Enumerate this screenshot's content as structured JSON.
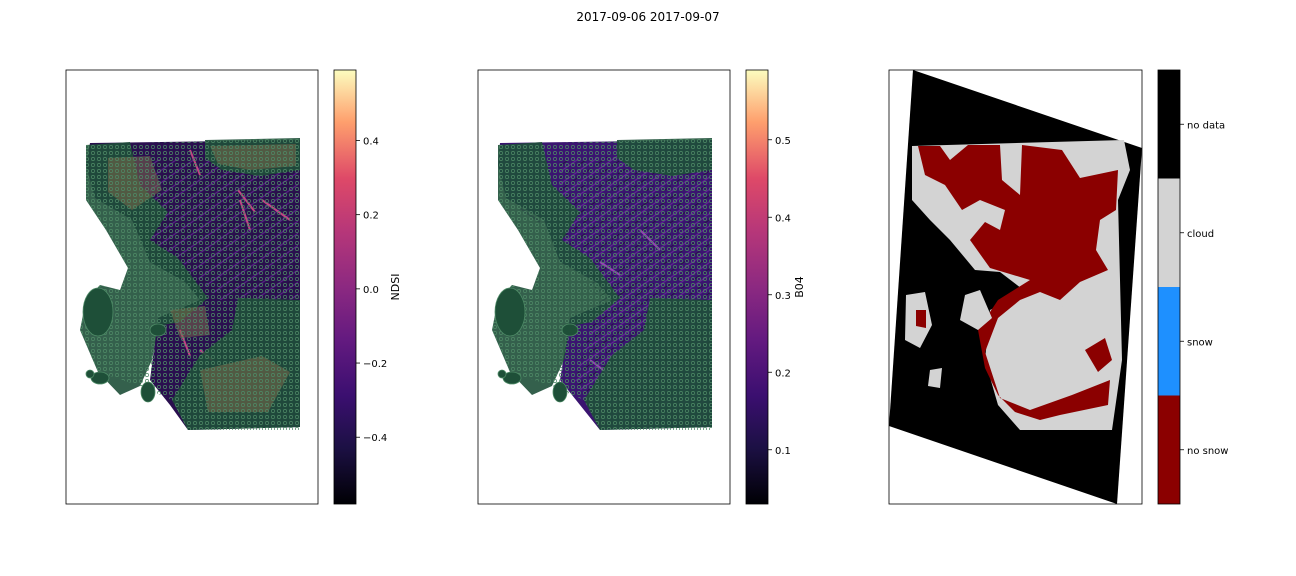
{
  "figure": {
    "title": "2017-09-06 2017-09-07"
  },
  "chart_data": [
    {
      "type": "heatmap",
      "title": "",
      "colorbar": {
        "label": "NDSI",
        "colormap": "magma",
        "range": [
          -0.58,
          0.59
        ],
        "ticks": [
          -0.4,
          -0.2,
          0.0,
          0.2,
          0.4
        ],
        "tick_labels": [
          "−0.4",
          "−0.2",
          "0.0",
          "0.2",
          "0.4"
        ]
      },
      "overlay_color": "#1e4f38",
      "xticks": [],
      "yticks": []
    },
    {
      "type": "heatmap",
      "title": "",
      "colorbar": {
        "label": "B04",
        "colormap": "magma",
        "range": [
          0.03,
          0.59
        ],
        "ticks": [
          0.1,
          0.2,
          0.3,
          0.4,
          0.5
        ],
        "tick_labels": [
          "0.1",
          "0.2",
          "0.3",
          "0.4",
          "0.5"
        ]
      },
      "overlay_color": "#1e4f38",
      "xticks": [],
      "yticks": []
    },
    {
      "type": "heatmap",
      "title": "",
      "colorbar": {
        "label": "",
        "categories": [
          {
            "name": "no snow",
            "color": "#8b0000"
          },
          {
            "name": "snow",
            "color": "#1e90ff"
          },
          {
            "name": "cloud",
            "color": "#d3d3d3"
          },
          {
            "name": "no data",
            "color": "#000000"
          }
        ]
      },
      "xticks": [],
      "yticks": []
    }
  ]
}
